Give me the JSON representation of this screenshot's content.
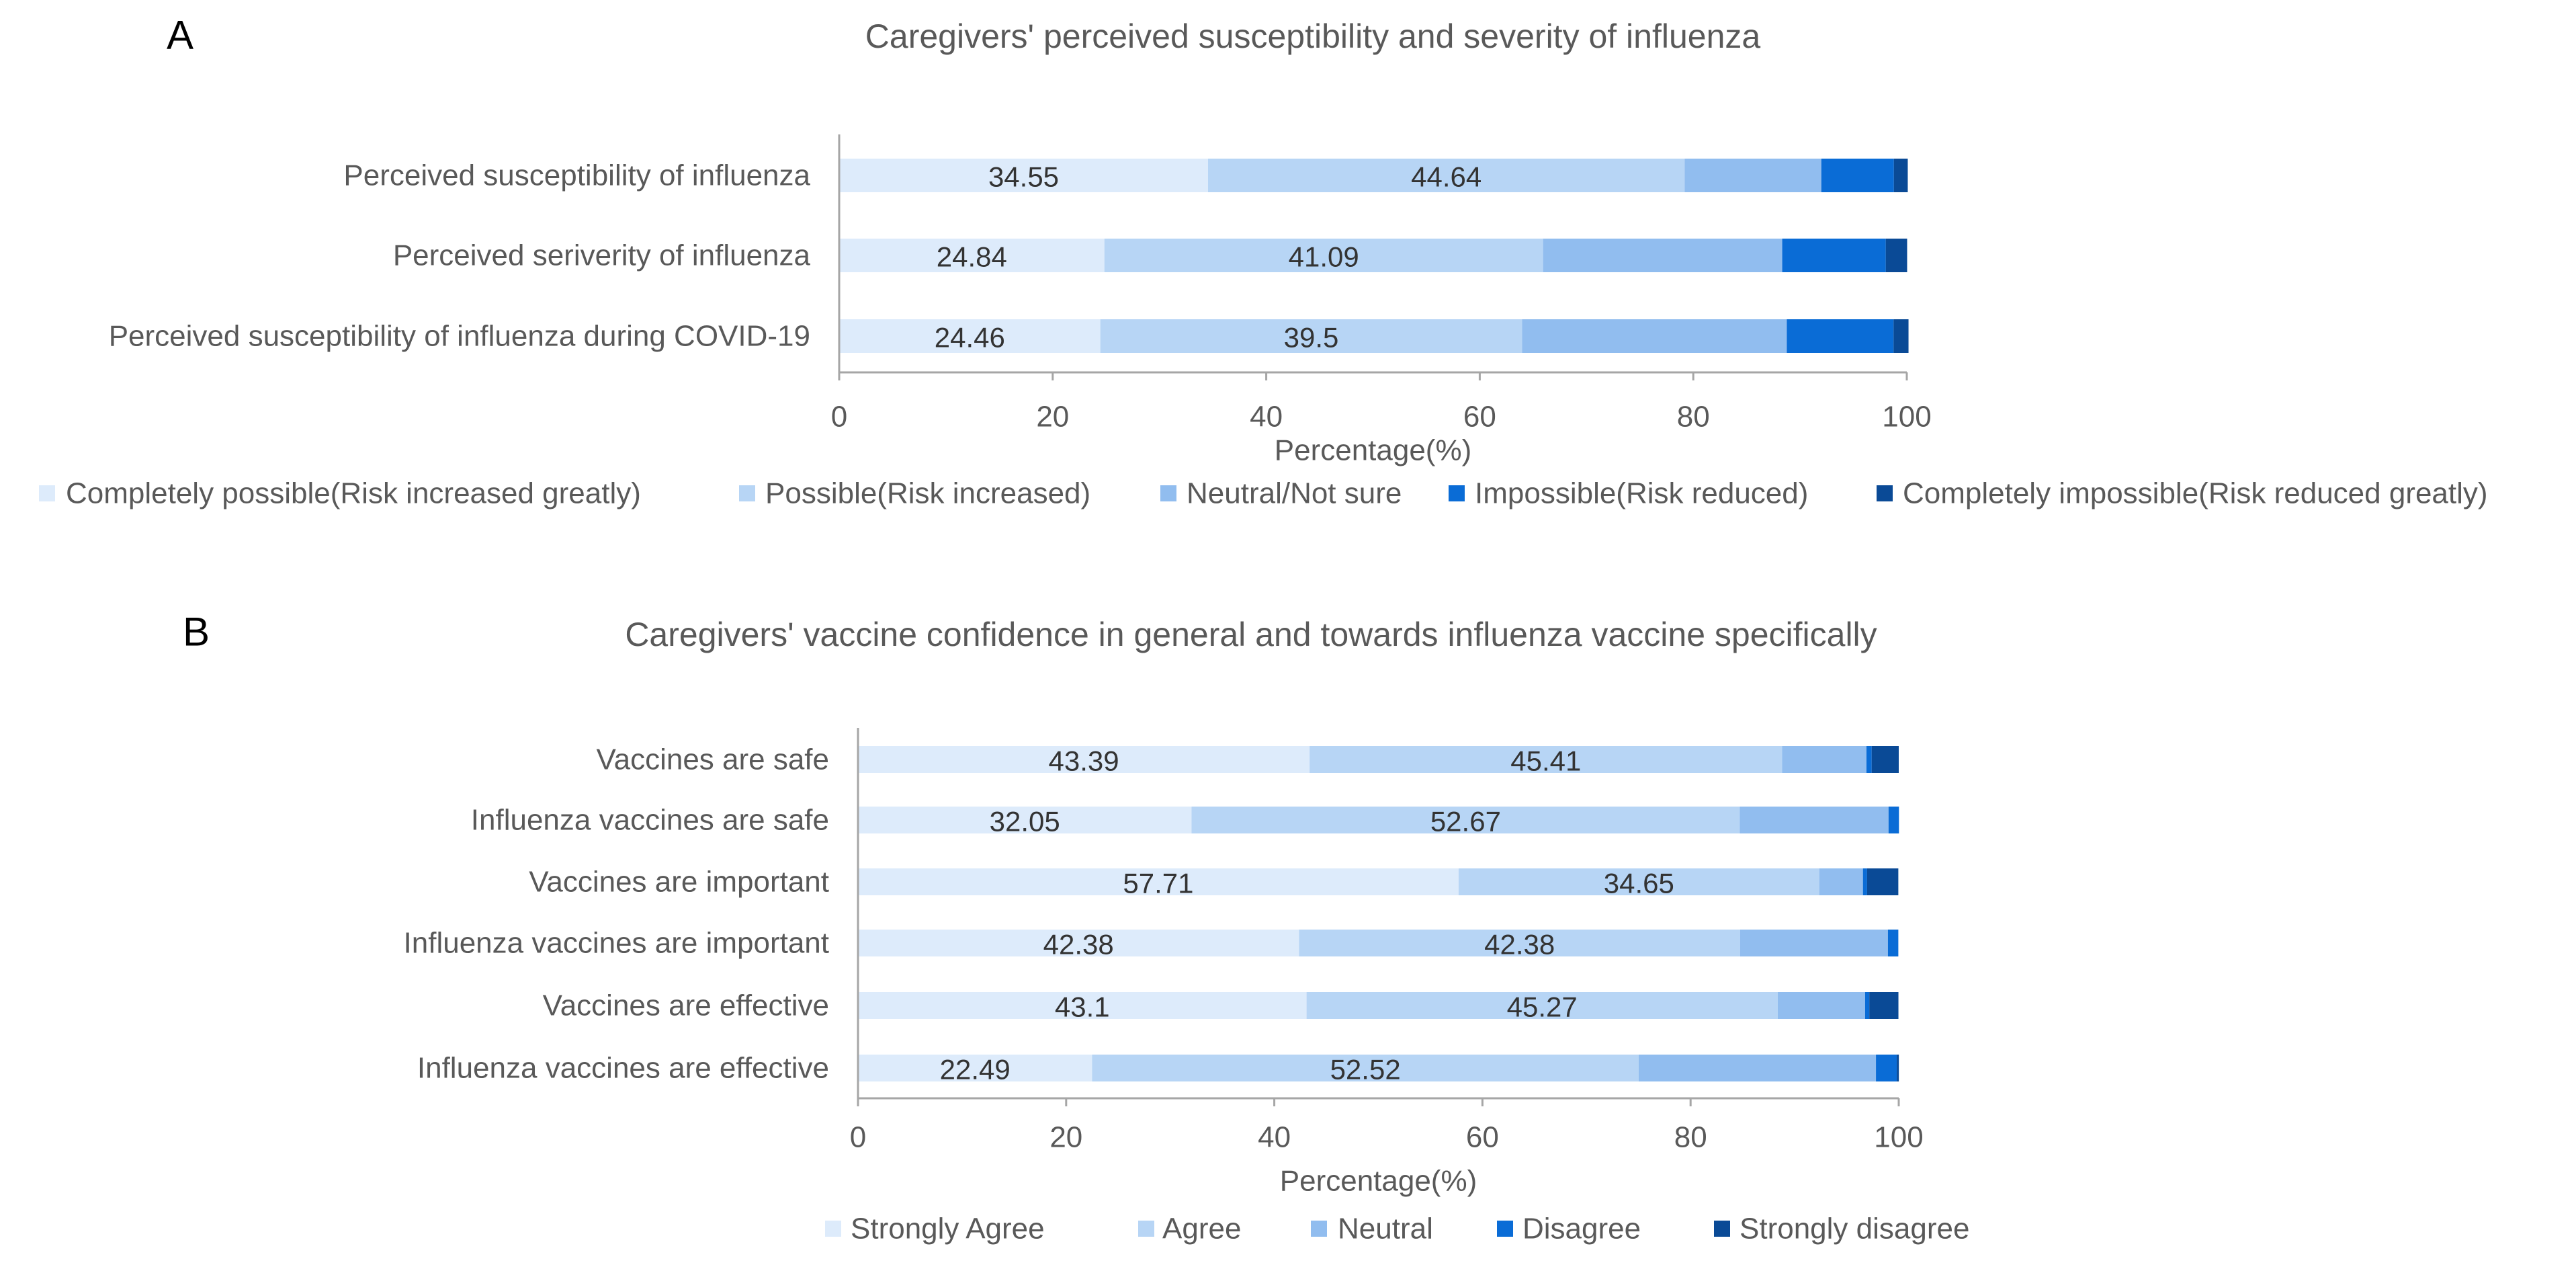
{
  "colors": {
    "series": [
      "#ddebfb",
      "#b7d5f5",
      "#91bdef",
      "#0a6cd6",
      "#0a4a96"
    ],
    "text": "#595959",
    "label_text": "#333333",
    "axis": "#a6a6a6"
  },
  "chart_data": [
    {
      "type": "bar",
      "orientation": "horizontal",
      "stacked": true,
      "panel_letter": "A",
      "title": "Caregivers' perceived susceptibility and severity of influenza",
      "xlabel": "Percentage(%)",
      "ylabel": "",
      "xlim": [
        0,
        100
      ],
      "xticks": [
        "0",
        "20",
        "40",
        "60",
        "80",
        "100"
      ],
      "categories": [
        "Perceived susceptibility of influenza",
        "Perceived seriverity of influenza",
        "Perceived susceptibility of influenza during COVID-19"
      ],
      "series": [
        {
          "name": "Completely possible(Risk increased greatly)",
          "values": [
            34.55,
            24.84,
            24.46
          ],
          "labels": [
            "34.55",
            "24.84",
            "24.46"
          ]
        },
        {
          "name": "Possible(Risk increased)",
          "values": [
            44.64,
            41.09,
            39.5
          ],
          "labels": [
            "44.64",
            "41.09",
            "39.5"
          ]
        },
        {
          "name": "Neutral/Not sure",
          "values": [
            12.8,
            22.4,
            24.8
          ],
          "labels": [
            "",
            "",
            ""
          ]
        },
        {
          "name": "Impossible(Risk reduced)",
          "values": [
            6.8,
            9.7,
            10.0
          ],
          "labels": [
            "",
            "",
            ""
          ]
        },
        {
          "name": "Completely impossible(Risk reduced greatly)",
          "values": [
            1.3,
            2.0,
            1.4
          ],
          "labels": [
            "",
            "",
            ""
          ]
        }
      ],
      "legend_position": "bottom"
    },
    {
      "type": "bar",
      "orientation": "horizontal",
      "stacked": true,
      "panel_letter": "B",
      "title": "Caregivers' vaccine confidence in general and towards influenza vaccine specifically",
      "xlabel": "Percentage(%)",
      "ylabel": "",
      "xlim": [
        0,
        100
      ],
      "xticks": [
        "0",
        "20",
        "40",
        "60",
        "80",
        "100"
      ],
      "categories": [
        "Vaccines are safe",
        "Influenza vaccines are safe",
        "Vaccines are important",
        "Influenza vaccines are important",
        "Vaccines are effective",
        "Influenza vaccines are effective"
      ],
      "series": [
        {
          "name": "Strongly Agree",
          "values": [
            43.39,
            32.05,
            57.71,
            42.38,
            43.1,
            22.49
          ],
          "labels": [
            "43.39",
            "32.05",
            "57.71",
            "42.38",
            "43.1",
            "22.49"
          ]
        },
        {
          "name": "Agree",
          "values": [
            45.41,
            52.67,
            34.65,
            42.38,
            45.27,
            52.52
          ],
          "labels": [
            "45.41",
            "52.67",
            "34.65",
            "42.38",
            "45.27",
            "52.52"
          ]
        },
        {
          "name": "Neutral",
          "values": [
            8.1,
            14.3,
            4.2,
            14.2,
            8.4,
            22.8
          ],
          "labels": [
            "",
            "",
            "",
            "",
            "",
            ""
          ]
        },
        {
          "name": "Disagree",
          "values": [
            0.5,
            1.0,
            0.4,
            1.0,
            0.4,
            2.0
          ],
          "labels": [
            "",
            "",
            "",
            "",
            "",
            ""
          ]
        },
        {
          "name": "Strongly disagree",
          "values": [
            2.6,
            0.0,
            3.0,
            0.0,
            2.8,
            0.2
          ],
          "labels": [
            "",
            "",
            "",
            "",
            "",
            ""
          ]
        }
      ],
      "legend_position": "bottom"
    }
  ]
}
